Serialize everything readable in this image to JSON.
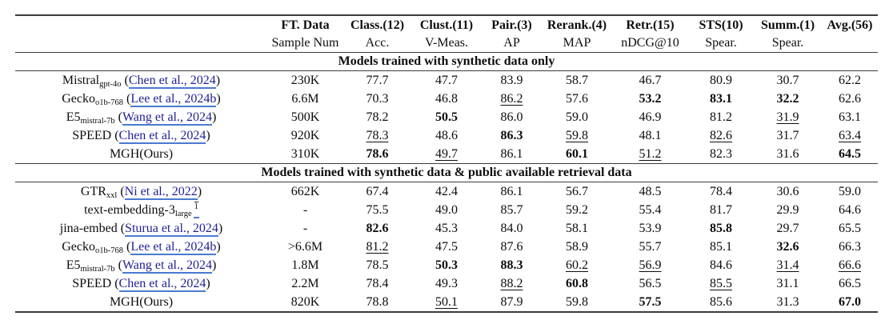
{
  "colors": {
    "citation_text": "#1f1f96",
    "citation_underline": "#4a7ad0",
    "rule": "#3c3c3c",
    "text": "#0d0d0d",
    "background": "#ffffff"
  },
  "table": {
    "columns": [
      {
        "top": "FT. Data",
        "bottom": "Sample Num"
      },
      {
        "top": "Class.(12)",
        "bottom": "Acc."
      },
      {
        "top": "Clust.(11)",
        "bottom": "V-Meas."
      },
      {
        "top": "Pair.(3)",
        "bottom": "AP"
      },
      {
        "top": "Rerank.(4)",
        "bottom": "MAP"
      },
      {
        "top": "Retr.(15)",
        "bottom": "nDCG@10"
      },
      {
        "top": "STS(10)",
        "bottom": "Spear."
      },
      {
        "top": "Summ.(1)",
        "bottom": "Spear."
      },
      {
        "top": "Avg.(56)",
        "bottom": ""
      }
    ],
    "style_legend": {
      "b": "bold (best)",
      "u": "underline (second best)",
      "": "plain"
    },
    "sections": [
      {
        "title": "Models trained with synthetic data only",
        "rows": [
          {
            "name": "Mistral",
            "sub": "gpt-4o",
            "sup": "",
            "cite": "Chen et al., 2024",
            "ft": "230K",
            "values": [
              "77.7",
              "47.7",
              "83.9",
              "58.7",
              "46.7",
              "80.9",
              "30.7",
              "62.2"
            ],
            "styles": [
              "",
              "",
              "",
              "",
              "",
              "",
              "",
              ""
            ]
          },
          {
            "name": "Gecko",
            "sub": "o1b-768",
            "sup": "",
            "cite": "Lee et al., 2024b",
            "ft": "6.6M",
            "values": [
              "70.3",
              "46.8",
              "86.2",
              "57.6",
              "53.2",
              "83.1",
              "32.2",
              "62.6"
            ],
            "styles": [
              "",
              "",
              "u",
              "",
              "b",
              "b",
              "b",
              ""
            ]
          },
          {
            "name": "E5",
            "sub": "mistral-7b",
            "sup": "",
            "cite": "Wang et al., 2024",
            "ft": "500K",
            "values": [
              "78.2",
              "50.5",
              "86.0",
              "59.0",
              "46.9",
              "81.2",
              "31.9",
              "63.1"
            ],
            "styles": [
              "",
              "b",
              "",
              "",
              "",
              "",
              "u",
              ""
            ]
          },
          {
            "name": "SPEED",
            "sub": "",
            "sup": "",
            "cite": "Chen et al., 2024",
            "ft": "920K",
            "values": [
              "78.3",
              "48.6",
              "86.3",
              "59.8",
              "48.1",
              "82.6",
              "31.7",
              "63.4"
            ],
            "styles": [
              "u",
              "",
              "b",
              "u",
              "",
              "u",
              "",
              "u"
            ]
          },
          {
            "name": "MGH(Ours)",
            "sub": "",
            "sup": "",
            "cite": "",
            "ft": "310K",
            "values": [
              "78.6",
              "49.7",
              "86.1",
              "60.1",
              "51.2",
              "82.3",
              "31.6",
              "64.5"
            ],
            "styles": [
              "b",
              "u",
              "",
              "b",
              "u",
              "",
              "",
              "b"
            ]
          }
        ]
      },
      {
        "title": "Models trained with synthetic data & public available retrieval data",
        "rows": [
          {
            "name": "GTR",
            "sub": "xxl",
            "sup": "",
            "cite": "Ni et al., 2022",
            "ft": "662K",
            "values": [
              "67.4",
              "42.4",
              "86.1",
              "56.7",
              "48.5",
              "78.4",
              "30.6",
              "59.0"
            ],
            "styles": [
              "",
              "",
              "",
              "",
              "",
              "",
              "",
              ""
            ]
          },
          {
            "name": "text-embedding-3",
            "sub": "large",
            "sup": "1",
            "cite": "",
            "ft": "-",
            "values": [
              "75.5",
              "49.0",
              "85.7",
              "59.2",
              "55.4",
              "81.7",
              "29.9",
              "64.6"
            ],
            "styles": [
              "",
              "",
              "",
              "",
              "",
              "",
              "",
              ""
            ]
          },
          {
            "name": "jina-embed",
            "sub": "",
            "sup": "",
            "cite": "Sturua et al., 2024",
            "ft": "-",
            "values": [
              "82.6",
              "45.3",
              "84.0",
              "58.1",
              "53.9",
              "85.8",
              "29.7",
              "65.5"
            ],
            "styles": [
              "b",
              "",
              "",
              "",
              "",
              "b",
              "",
              ""
            ]
          },
          {
            "name": "Gecko",
            "sub": "o1b-768",
            "sup": "",
            "cite": "Lee et al., 2024b",
            "ft": ">6.6M",
            "values": [
              "81.2",
              "47.5",
              "87.6",
              "58.9",
              "55.7",
              "85.1",
              "32.6",
              "66.3"
            ],
            "styles": [
              "u",
              "",
              "",
              "",
              "",
              "",
              "b",
              ""
            ]
          },
          {
            "name": "E5",
            "sub": "mistral-7b",
            "sup": "",
            "cite": "Wang et al., 2024",
            "ft": "1.8M",
            "values": [
              "78.5",
              "50.3",
              "88.3",
              "60.2",
              "56.9",
              "84.6",
              "31.4",
              "66.6"
            ],
            "styles": [
              "",
              "b",
              "b",
              "u",
              "u",
              "",
              "u",
              "u"
            ]
          },
          {
            "name": "SPEED",
            "sub": "",
            "sup": "",
            "cite": "Chen et al., 2024",
            "ft": "2.2M",
            "values": [
              "78.4",
              "49.3",
              "88.2",
              "60.8",
              "56.5",
              "85.5",
              "31.1",
              "66.5"
            ],
            "styles": [
              "",
              "",
              "u",
              "b",
              "",
              "u",
              "",
              ""
            ]
          },
          {
            "name": "MGH(Ours)",
            "sub": "",
            "sup": "",
            "cite": "",
            "ft": "820K",
            "values": [
              "78.8",
              "50.1",
              "87.9",
              "59.8",
              "57.5",
              "85.6",
              "31.3",
              "67.0"
            ],
            "styles": [
              "",
              "u",
              "",
              "",
              "b",
              "",
              "",
              "b"
            ]
          }
        ]
      }
    ]
  }
}
